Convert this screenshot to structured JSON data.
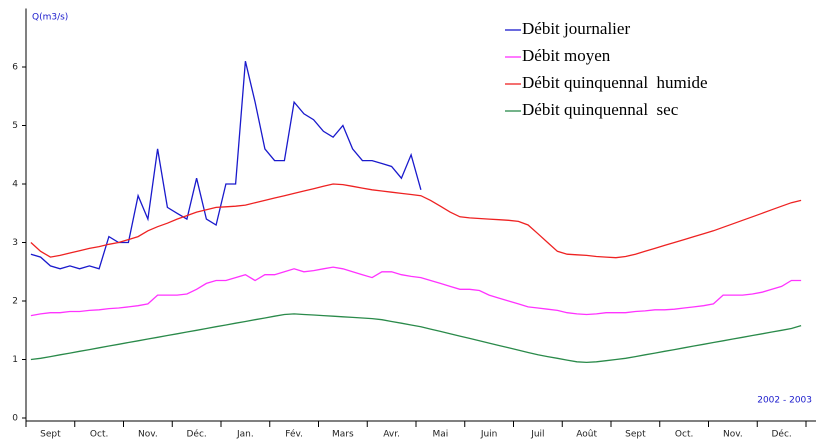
{
  "chart_data": {
    "type": "line",
    "y_label": "Q(m3/s)",
    "annotation": "2002 - 2003",
    "categories": [
      null,
      null,
      "Sept",
      null,
      null,
      null,
      null,
      "Oct.",
      null,
      null,
      null,
      null,
      "Nov.",
      null,
      null,
      null,
      null,
      "Déc.",
      null,
      null,
      null,
      null,
      "Jan.",
      null,
      null,
      null,
      null,
      "Fév.",
      null,
      null,
      null,
      null,
      "Mars",
      null,
      null,
      null,
      null,
      "Avr.",
      null,
      null,
      null,
      null,
      "Mai",
      null,
      null,
      null,
      null,
      "Juin",
      null,
      null,
      null,
      null,
      "Juil",
      null,
      null,
      null,
      null,
      "Août",
      null,
      null,
      null,
      null,
      "Sept",
      null,
      null,
      null,
      null,
      "Oct.",
      null,
      null,
      null,
      null,
      "Nov.",
      null,
      null,
      null,
      null,
      "Déc.",
      null,
      null
    ],
    "series": [
      {
        "name": "Débit journalier",
        "color": "#1a1acc",
        "values": [
          2.8,
          2.75,
          2.6,
          2.55,
          2.6,
          2.55,
          2.6,
          2.55,
          3.1,
          3.0,
          3.0,
          3.8,
          3.4,
          4.6,
          3.6,
          3.5,
          3.4,
          4.1,
          3.4,
          3.3,
          4.0,
          4.0,
          6.1,
          5.4,
          4.6,
          4.4,
          4.4,
          5.4,
          5.2,
          5.1,
          4.9,
          4.8,
          5.0,
          4.6,
          4.4,
          4.4,
          4.35,
          4.3,
          4.1,
          4.5,
          3.9,
          null,
          null,
          null,
          null,
          null,
          null,
          null,
          null,
          null,
          null,
          null,
          null,
          null,
          null,
          null,
          null,
          null,
          null,
          null,
          null,
          null,
          null,
          null,
          null,
          null,
          null,
          null,
          null,
          null,
          null,
          null,
          null,
          null,
          null,
          null,
          null,
          null,
          null,
          null
        ]
      },
      {
        "name": "Débit moyen",
        "color": "#ff33ff",
        "values": [
          1.75,
          1.78,
          1.8,
          1.8,
          1.82,
          1.82,
          1.84,
          1.85,
          1.87,
          1.88,
          1.9,
          1.92,
          1.95,
          2.1,
          2.1,
          2.1,
          2.12,
          2.2,
          2.3,
          2.35,
          2.35,
          2.4,
          2.45,
          2.35,
          2.45,
          2.45,
          2.5,
          2.55,
          2.5,
          2.52,
          2.55,
          2.58,
          2.55,
          2.5,
          2.45,
          2.4,
          2.5,
          2.5,
          2.45,
          2.42,
          2.4,
          2.35,
          2.3,
          2.25,
          2.2,
          2.2,
          2.18,
          2.1,
          2.05,
          2.0,
          1.95,
          1.9,
          1.88,
          1.86,
          1.84,
          1.8,
          1.78,
          1.77,
          1.78,
          1.8,
          1.8,
          1.8,
          1.82,
          1.83,
          1.85,
          1.85,
          1.86,
          1.88,
          1.9,
          1.92,
          1.95,
          2.1,
          2.1,
          2.1,
          2.12,
          2.15,
          2.2,
          2.25,
          2.35,
          2.35
        ]
      },
      {
        "name": "Débit quinquennal  humide",
        "color": "#ee2222",
        "values": [
          3.0,
          2.85,
          2.75,
          2.78,
          2.82,
          2.86,
          2.9,
          2.93,
          2.97,
          3.0,
          3.05,
          3.1,
          3.2,
          3.27,
          3.33,
          3.4,
          3.46,
          3.52,
          3.56,
          3.6,
          3.61,
          3.62,
          3.64,
          3.68,
          3.72,
          3.76,
          3.8,
          3.84,
          3.88,
          3.92,
          3.96,
          4.0,
          3.99,
          3.96,
          3.93,
          3.9,
          3.88,
          3.86,
          3.84,
          3.82,
          3.8,
          3.72,
          3.62,
          3.52,
          3.44,
          3.42,
          3.41,
          3.4,
          3.39,
          3.38,
          3.36,
          3.3,
          3.15,
          3.0,
          2.85,
          2.8,
          2.79,
          2.78,
          2.76,
          2.75,
          2.74,
          2.76,
          2.8,
          2.85,
          2.9,
          2.95,
          3.0,
          3.05,
          3.1,
          3.15,
          3.2,
          3.26,
          3.32,
          3.38,
          3.44,
          3.5,
          3.56,
          3.62,
          3.68,
          3.72
        ]
      },
      {
        "name": "Débit quinquennal  sec",
        "color": "#2a8a4a",
        "values": [
          1.0,
          1.02,
          1.05,
          1.08,
          1.11,
          1.14,
          1.17,
          1.2,
          1.23,
          1.26,
          1.29,
          1.32,
          1.35,
          1.38,
          1.41,
          1.44,
          1.47,
          1.5,
          1.53,
          1.56,
          1.59,
          1.62,
          1.65,
          1.68,
          1.71,
          1.74,
          1.77,
          1.78,
          1.77,
          1.76,
          1.75,
          1.74,
          1.73,
          1.72,
          1.71,
          1.7,
          1.68,
          1.65,
          1.62,
          1.59,
          1.56,
          1.52,
          1.48,
          1.44,
          1.4,
          1.36,
          1.32,
          1.28,
          1.24,
          1.2,
          1.16,
          1.12,
          1.08,
          1.05,
          1.02,
          0.99,
          0.96,
          0.95,
          0.96,
          0.98,
          1.0,
          1.02,
          1.05,
          1.08,
          1.11,
          1.14,
          1.17,
          1.2,
          1.23,
          1.26,
          1.29,
          1.32,
          1.35,
          1.38,
          1.41,
          1.44,
          1.47,
          1.5,
          1.53,
          1.58
        ]
      }
    ],
    "ylim": [
      0,
      7
    ],
    "yticks": [
      0,
      1,
      2,
      3,
      4,
      5,
      6
    ]
  }
}
